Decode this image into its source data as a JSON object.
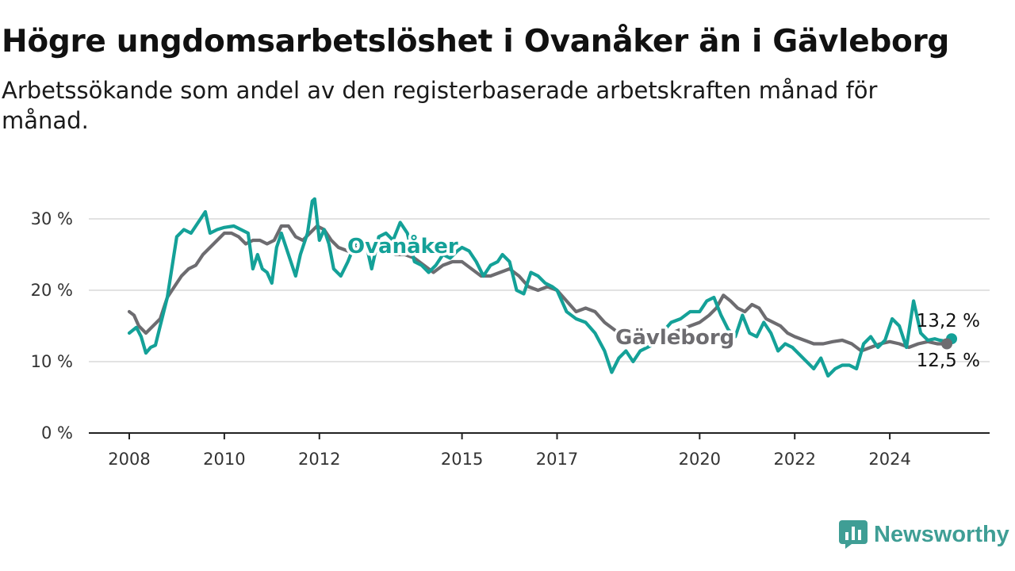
{
  "title": "Högre ungdomsarbetslöshet i Ovanåker än i Gävleborg",
  "subtitle": "Arbetssökande som andel av den registerbaserade arbetskraften månad för månad.",
  "brand": "Newsworthy",
  "colors": {
    "ovanaker": "#14a198",
    "gavleborg": "#6d6c70",
    "grid": "#d9d9d9",
    "axis": "#222222"
  },
  "chart_data": {
    "type": "line",
    "title": "Högre ungdomsarbetslöshet i Ovanåker än i Gävleborg",
    "xlabel": "",
    "ylabel": "",
    "xlim": [
      2008,
      2025.8
    ],
    "ylim": [
      0,
      30
    ],
    "grid": true,
    "legend": "inline labels on lines",
    "x_ticks": [
      2008,
      2010,
      2012,
      2015,
      2017,
      2020,
      2022,
      2024
    ],
    "x_tick_labels": [
      "2008",
      "2010",
      "2012",
      "2015",
      "2017",
      "2020",
      "2022",
      "2024"
    ],
    "y_ticks": [
      0,
      10,
      20,
      30
    ],
    "y_tick_labels": [
      "0 %",
      "10 %",
      "20 %",
      "30 %"
    ],
    "end_labels": {
      "ovanaker": "13,2 %",
      "gavleborg": "12,5 %"
    },
    "series": [
      {
        "name": "Ovanåker",
        "x": [
          2008.0,
          2008.15,
          2008.25,
          2008.35,
          2008.45,
          2008.55,
          2008.65,
          2008.8,
          2009.0,
          2009.15,
          2009.3,
          2009.45,
          2009.6,
          2009.7,
          2009.85,
          2010.0,
          2010.2,
          2010.35,
          2010.5,
          2010.6,
          2010.7,
          2010.8,
          2010.9,
          2011.0,
          2011.1,
          2011.2,
          2011.35,
          2011.5,
          2011.6,
          2011.75,
          2011.85,
          2011.9,
          2012.0,
          2012.1,
          2012.2,
          2012.3,
          2012.45,
          2012.6,
          2012.75,
          2012.9,
          2013.0,
          2013.1,
          2013.25,
          2013.4,
          2013.55,
          2013.7,
          2013.85,
          2014.0,
          2014.15,
          2014.3,
          2014.45,
          2014.6,
          2014.75,
          2014.9,
          2015.0,
          2015.15,
          2015.3,
          2015.45,
          2015.6,
          2015.75,
          2015.85,
          2016.0,
          2016.15,
          2016.3,
          2016.45,
          2016.6,
          2016.75,
          2016.9,
          2017.0,
          2017.2,
          2017.4,
          2017.6,
          2017.8,
          2018.0,
          2018.15,
          2018.3,
          2018.45,
          2018.6,
          2018.75,
          2018.9,
          2019.05,
          2019.2,
          2019.4,
          2019.6,
          2019.8,
          2020.0,
          2020.15,
          2020.3,
          2020.45,
          2020.6,
          2020.75,
          2020.9,
          2021.05,
          2021.2,
          2021.35,
          2021.5,
          2021.65,
          2021.8,
          2021.95,
          2022.1,
          2022.25,
          2022.4,
          2022.55,
          2022.7,
          2022.85,
          2023.0,
          2023.15,
          2023.3,
          2023.45,
          2023.6,
          2023.75,
          2023.9,
          2024.05,
          2024.2,
          2024.35,
          2024.5,
          2024.65,
          2024.8,
          2024.95,
          2025.05,
          2025.15,
          2025.3
        ],
        "values": [
          14.0,
          14.8,
          13.5,
          11.2,
          12.0,
          12.3,
          15.0,
          19.0,
          27.5,
          28.5,
          28.0,
          29.5,
          31.0,
          28.0,
          28.5,
          28.8,
          29.0,
          28.5,
          28.0,
          23.0,
          25.0,
          23.0,
          22.5,
          21.0,
          26.0,
          28.0,
          25.0,
          22.0,
          25.0,
          28.0,
          32.5,
          32.8,
          27.0,
          28.5,
          26.5,
          23.0,
          22.0,
          24.0,
          26.5,
          27.0,
          26.0,
          23.0,
          27.5,
          28.0,
          27.0,
          29.5,
          28.0,
          24.0,
          23.5,
          22.5,
          23.5,
          25.0,
          24.5,
          25.5,
          26.0,
          25.5,
          24.0,
          22.0,
          23.5,
          24.0,
          25.0,
          24.0,
          20.0,
          19.5,
          22.5,
          22.0,
          21.0,
          20.5,
          20.0,
          17.0,
          16.0,
          15.5,
          14.0,
          11.5,
          8.5,
          10.5,
          11.5,
          10.0,
          11.5,
          12.0,
          12.5,
          14.0,
          15.5,
          16.0,
          17.0,
          17.0,
          18.5,
          19.0,
          16.5,
          14.5,
          13.5,
          16.5,
          14.0,
          13.5,
          15.5,
          14.0,
          11.5,
          12.5,
          12.0,
          11.0,
          10.0,
          9.0,
          10.5,
          8.0,
          9.0,
          9.5,
          9.5,
          9.0,
          12.5,
          13.5,
          12.0,
          13.0,
          16.0,
          15.0,
          12.0,
          18.5,
          14.0,
          13.0,
          13.2,
          13.0,
          12.9,
          13.2
        ]
      },
      {
        "name": "Gävleborg",
        "x": [
          2008.0,
          2008.1,
          2008.2,
          2008.35,
          2008.5,
          2008.65,
          2008.8,
          2008.95,
          2009.1,
          2009.25,
          2009.4,
          2009.55,
          2009.7,
          2009.85,
          2010.0,
          2010.15,
          2010.3,
          2010.45,
          2010.6,
          2010.75,
          2010.9,
          2011.05,
          2011.2,
          2011.35,
          2011.5,
          2011.65,
          2011.8,
          2011.95,
          2012.1,
          2012.25,
          2012.4,
          2012.6,
          2012.8,
          2013.0,
          2013.2,
          2013.4,
          2013.6,
          2013.8,
          2014.0,
          2014.2,
          2014.4,
          2014.6,
          2014.8,
          2015.0,
          2015.2,
          2015.4,
          2015.6,
          2015.8,
          2016.0,
          2016.2,
          2016.4,
          2016.6,
          2016.8,
          2017.0,
          2017.2,
          2017.4,
          2017.6,
          2017.8,
          2018.0,
          2018.2,
          2018.4,
          2018.6,
          2018.8,
          2019.0,
          2019.2,
          2019.4,
          2019.6,
          2019.8,
          2020.0,
          2020.2,
          2020.35,
          2020.5,
          2020.65,
          2020.8,
          2020.95,
          2021.1,
          2021.25,
          2021.4,
          2021.55,
          2021.7,
          2021.85,
          2022.0,
          2022.2,
          2022.4,
          2022.6,
          2022.8,
          2023.0,
          2023.2,
          2023.4,
          2023.6,
          2023.8,
          2024.0,
          2024.2,
          2024.4,
          2024.6,
          2024.8,
          2025.0,
          2025.2
        ],
        "values": [
          17.0,
          16.5,
          15.0,
          14.0,
          15.0,
          16.0,
          19.0,
          20.5,
          22.0,
          23.0,
          23.5,
          25.0,
          26.0,
          27.0,
          28.0,
          28.0,
          27.5,
          26.5,
          27.0,
          27.0,
          26.5,
          27.0,
          29.0,
          29.0,
          27.5,
          27.0,
          28.0,
          29.0,
          28.5,
          27.0,
          26.0,
          25.5,
          26.0,
          26.5,
          26.0,
          25.5,
          25.0,
          25.0,
          24.5,
          23.5,
          22.5,
          23.5,
          24.0,
          24.0,
          23.0,
          22.0,
          22.0,
          22.5,
          23.0,
          22.0,
          20.5,
          20.0,
          20.5,
          20.0,
          18.5,
          17.0,
          17.5,
          17.0,
          15.5,
          14.5,
          13.5,
          13.0,
          12.5,
          13.0,
          13.5,
          14.0,
          14.5,
          15.0,
          15.5,
          16.5,
          17.5,
          19.3,
          18.5,
          17.5,
          17.0,
          18.0,
          17.5,
          16.0,
          15.5,
          15.0,
          14.0,
          13.5,
          13.0,
          12.5,
          12.5,
          12.8,
          13.0,
          12.5,
          11.5,
          12.0,
          12.5,
          12.8,
          12.5,
          12.0,
          12.5,
          12.8,
          12.5,
          12.5
        ]
      }
    ]
  }
}
